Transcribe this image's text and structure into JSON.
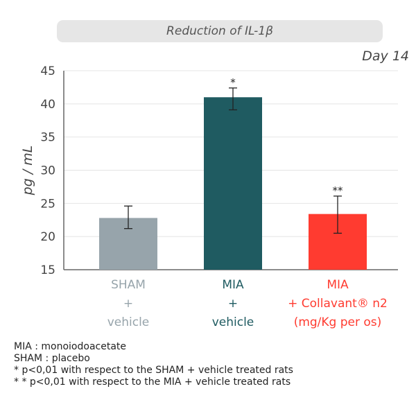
{
  "header": {
    "title": "Reduction of IL-1β",
    "day": "Day 14"
  },
  "chart_data": {
    "type": "bar",
    "ylabel": "pg / mL",
    "ylim": [
      15,
      45
    ],
    "yticks": [
      15,
      20,
      25,
      30,
      35,
      40,
      45
    ],
    "grid": true,
    "bars": [
      {
        "label_lines": [
          "SHAM",
          "+",
          "vehicle"
        ],
        "value": 22.8,
        "error_low": 21.2,
        "error_high": 24.6,
        "annotation": "",
        "color": "#97a4ab"
      },
      {
        "label_lines": [
          "MIA",
          "+",
          "vehicle"
        ],
        "value": 41.0,
        "error_low": 39.1,
        "error_high": 42.4,
        "annotation": "*",
        "color": "#1f5b61"
      },
      {
        "label_lines": [
          "MIA",
          "+ Collavant® n2",
          "(mg/Kg per os)"
        ],
        "value": 23.4,
        "error_low": 20.5,
        "error_high": 26.1,
        "annotation": "**",
        "color": "#ff3b30"
      }
    ]
  },
  "footnotes": [
    "MIA : monoiodoacetate",
    "SHAM : placebo",
    "*  p<0,01 with respect to the SHAM + vehicle treated rats",
    "* * p<0,01 with respect to the MIA + vehicle treated rats"
  ]
}
